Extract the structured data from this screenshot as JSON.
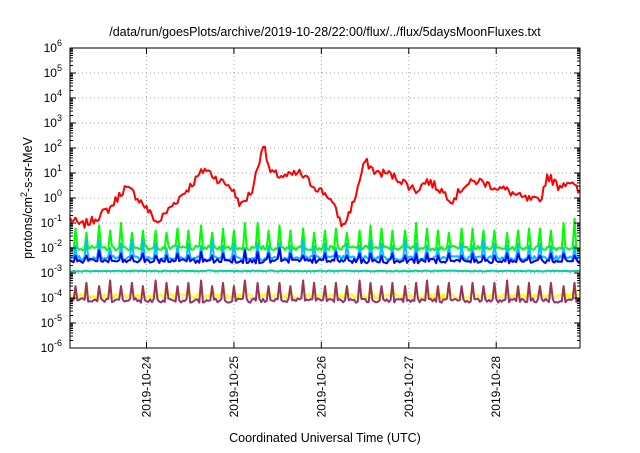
{
  "chart_data": {
    "type": "line",
    "title": "/data/run/goesPlots/archive/2019-10-28/22:00/flux/../flux/5daysMoonFluxes.txt",
    "xlabel": "Coordinated Universal Time (UTC)",
    "ylabel": {
      "base": "protons/cm",
      "sup": "2",
      "rest": "-s-sr-MeV"
    },
    "y_scale": "log",
    "ylim_exponent": [
      -6,
      6
    ],
    "ytick_exponents": [
      -6,
      -5,
      -4,
      -3,
      -2,
      -1,
      0,
      1,
      2,
      3,
      4,
      5,
      6
    ],
    "ytick_base": "10",
    "xlim": [
      "2019-10-23T03:00",
      "2019-10-28T23:00"
    ],
    "xticks": [
      "2019-10-24",
      "2019-10-25",
      "2019-10-26",
      "2019-10-27",
      "2019-10-28"
    ],
    "grid": true,
    "series": [
      {
        "color": "#ff0000",
        "keypoints": [
          [
            "2019-10-23T03:00",
            0.15
          ],
          [
            "2019-10-23T06:00",
            0.08
          ],
          [
            "2019-10-23T09:00",
            0.12
          ],
          [
            "2019-10-23T14:00",
            0.4
          ],
          [
            "2019-10-23T18:00",
            2.5
          ],
          [
            "2019-10-23T20:00",
            1.8
          ],
          [
            "2019-10-23T23:00",
            0.6
          ],
          [
            "2019-10-24T03:00",
            0.1
          ],
          [
            "2019-10-24T07:00",
            0.5
          ],
          [
            "2019-10-24T12:00",
            3
          ],
          [
            "2019-10-24T16:00",
            15
          ],
          [
            "2019-10-24T20:00",
            5
          ],
          [
            "2019-10-24T23:00",
            3
          ],
          [
            "2019-10-25T02:00",
            0.5
          ],
          [
            "2019-10-25T05:00",
            2
          ],
          [
            "2019-10-25T08:00",
            150
          ],
          [
            "2019-10-25T10:00",
            10
          ],
          [
            "2019-10-25T14:00",
            7
          ],
          [
            "2019-10-25T18:00",
            10
          ],
          [
            "2019-10-25T22:00",
            3
          ],
          [
            "2019-10-26T02:00",
            1.2
          ],
          [
            "2019-10-26T04:00",
            0.3
          ],
          [
            "2019-10-26T06:00",
            0.07
          ],
          [
            "2019-10-26T09:00",
            0.8
          ],
          [
            "2019-10-26T12:00",
            30
          ],
          [
            "2019-10-26T15:00",
            10
          ],
          [
            "2019-10-26T18:00",
            10
          ],
          [
            "2019-10-26T22:00",
            5
          ],
          [
            "2019-10-27T02:00",
            2
          ],
          [
            "2019-10-27T05:00",
            5
          ],
          [
            "2019-10-27T09:00",
            2
          ],
          [
            "2019-10-27T12:00",
            0.8
          ],
          [
            "2019-10-27T15:00",
            3
          ],
          [
            "2019-10-27T19:00",
            5
          ],
          [
            "2019-10-27T23:00",
            3
          ],
          [
            "2019-10-28T03:00",
            2
          ],
          [
            "2019-10-28T07:00",
            1
          ],
          [
            "2019-10-28T12:00",
            0.7
          ],
          [
            "2019-10-28T14:00",
            8
          ],
          [
            "2019-10-28T17:00",
            3
          ],
          [
            "2019-10-28T20:00",
            5
          ],
          [
            "2019-10-28T23:00",
            1.5
          ]
        ]
      },
      {
        "color": "#00ff00",
        "baseline": 0.01,
        "spikes": [
          0.06,
          0.04,
          0.08,
          0.05,
          0.1,
          0.04,
          0.05,
          0.05,
          0.04,
          0.06,
          0.05,
          0.08,
          0.04,
          0.06,
          0.05,
          0.1,
          0.1,
          0.05,
          0.08,
          0.05,
          0.06,
          0.04,
          0.05,
          0.06,
          0.04,
          0.05,
          0.08,
          0.06,
          0.05,
          0.05,
          0.1,
          0.06,
          0.05,
          0.04,
          0.06,
          0.06,
          0.05,
          0.05,
          0.04,
          0.05,
          0.06,
          0.06,
          0.05,
          0.1,
          0.15
        ]
      },
      {
        "color": "#00c0ff",
        "baseline": 0.004,
        "spikes": [
          0.012,
          0.02,
          0.02,
          0.01,
          0.015,
          0.02,
          0.02,
          0.015,
          0.01,
          0.012,
          0.015,
          0.012,
          0.02,
          0.012,
          0.015,
          0.01,
          0.015,
          0.012,
          0.015,
          0.012,
          0.02,
          0.012,
          0.015,
          0.01,
          0.015,
          0.012,
          0.02,
          0.015,
          0.012,
          0.02,
          0.015,
          0.012,
          0.01,
          0.012,
          0.015,
          0.012,
          0.02,
          0.015,
          0.012,
          0.015,
          0.012,
          0.015,
          0.012,
          0.01,
          0.012
        ]
      },
      {
        "color": "#0000ff",
        "baseline": 0.003,
        "spikes": [
          0.005,
          0.005,
          0.008,
          0.005,
          0.006,
          0.005,
          0.006,
          0.005,
          0.005,
          0.006,
          0.005,
          0.007,
          0.005,
          0.006,
          0.005,
          0.008,
          0.007,
          0.006,
          0.01,
          0.006,
          0.005,
          0.005,
          0.006,
          0.007,
          0.005,
          0.006,
          0.006,
          0.005,
          0.006,
          0.005,
          0.006,
          0.006,
          0.005,
          0.006,
          0.005,
          0.006,
          0.005,
          0.005,
          0.006,
          0.006,
          0.005,
          0.005,
          0.006,
          0.006,
          0.005
        ]
      },
      {
        "color": "#00d0a0",
        "baseline": 0.0012
      },
      {
        "color": "#ffff00",
        "baseline": 0.00012,
        "spikes": [
          0.0003,
          0.0004,
          0.0003,
          0.0005,
          0.0003,
          0.0004,
          0.0003,
          0.0005,
          0.0004,
          0.0003,
          0.0004,
          0.0005,
          0.0003,
          0.0004,
          0.0003,
          0.0005,
          0.0004,
          0.0003,
          0.0004,
          0.0003,
          0.0005,
          0.0004,
          0.0003,
          0.0004,
          0.0003,
          0.0005,
          0.0004,
          0.0003,
          0.0004,
          0.0003,
          0.0004,
          0.0005,
          0.0003,
          0.0004,
          0.0003,
          0.0004,
          0.0003,
          0.0004,
          0.0005,
          0.0003,
          0.0004,
          0.0003,
          0.0004,
          0.0003,
          0.0004
        ]
      },
      {
        "color": "#993366",
        "baseline": 8e-05,
        "spikes": [
          0.0003,
          0.0004,
          0.0003,
          0.0005,
          0.0003,
          0.0004,
          0.0003,
          0.0005,
          0.0004,
          0.0003,
          0.0004,
          0.0005,
          0.0003,
          0.0004,
          0.0003,
          0.0005,
          0.0004,
          0.0003,
          0.0004,
          0.0003,
          0.0005,
          0.0004,
          0.0003,
          0.0004,
          0.0003,
          0.0005,
          0.0004,
          0.0003,
          0.0004,
          0.0003,
          0.0004,
          0.0005,
          0.0003,
          0.0004,
          0.0003,
          0.0004,
          0.0003,
          0.0004,
          0.0005,
          0.0003,
          0.0004,
          0.0003,
          0.0004,
          0.0003,
          0.0004
        ]
      }
    ]
  }
}
